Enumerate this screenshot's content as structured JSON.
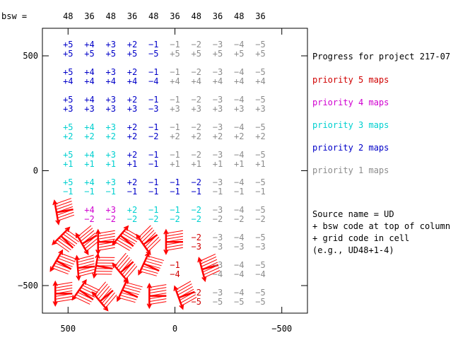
{
  "chart_data": {
    "type": "table",
    "top_label": "bsw =",
    "columns": [
      {
        "bsw": "48",
        "x": 500
      },
      {
        "bsw": "36",
        "x": 400
      },
      {
        "bsw": "48",
        "x": 300
      },
      {
        "bsw": "36",
        "x": 200
      },
      {
        "bsw": "48",
        "x": 100
      },
      {
        "bsw": "36",
        "x": 0
      },
      {
        "bsw": "48",
        "x": -100
      },
      {
        "bsw": "36",
        "x": -200
      },
      {
        "bsw": "48",
        "x": -300
      },
      {
        "bsw": "36",
        "x": -400
      }
    ],
    "rows": [
      {
        "y": 550,
        "upper": [
          "+5",
          "+4",
          "+3",
          "+2",
          "−1",
          "−1",
          "−2",
          "−3",
          "−4",
          "−5"
        ],
        "lower": [
          "+5",
          "+5",
          "+5",
          "+5",
          "−5",
          "+5",
          "+5",
          "+5",
          "+5",
          "+5"
        ]
      },
      {
        "y": 430,
        "upper": [
          "+5",
          "+4",
          "+3",
          "+2",
          "−1",
          "−1",
          "−2",
          "−3",
          "−4",
          "−5"
        ],
        "lower": [
          "+4",
          "+4",
          "+4",
          "+4",
          "−4",
          "+4",
          "+4",
          "+4",
          "+4",
          "+4"
        ]
      },
      {
        "y": 310,
        "upper": [
          "+5",
          "+4",
          "+3",
          "+2",
          "−1",
          "−1",
          "−2",
          "−3",
          "−4",
          "−5"
        ],
        "lower": [
          "+3",
          "+3",
          "+3",
          "+3",
          "−3",
          "+3",
          "+3",
          "+3",
          "+3",
          "+3"
        ]
      },
      {
        "y": 190,
        "upper": [
          "+5",
          "+4",
          "+3",
          "+2",
          "−1",
          "−1",
          "−2",
          "−3",
          "−4",
          "−5"
        ],
        "lower": [
          "+2",
          "+2",
          "+2",
          "+2",
          "−2",
          "+2",
          "+2",
          "+2",
          "+2",
          "+2"
        ]
      },
      {
        "y": 70,
        "upper": [
          "+5",
          "+4",
          "+3",
          "+2",
          "−1",
          "−1",
          "−2",
          "−3",
          "−4",
          "−5"
        ],
        "lower": [
          "+1",
          "+1",
          "+1",
          "+1",
          "−1",
          "+1",
          "+1",
          "+1",
          "+1",
          "+1"
        ]
      },
      {
        "y": -50,
        "upper": [
          "+5",
          "+4",
          "+3",
          "+2",
          "−1",
          "−1",
          "−2",
          "−3",
          "−4",
          "−5"
        ],
        "lower": [
          "−1",
          "−1",
          "−1",
          "−1",
          "−1",
          "−1",
          "−1",
          "−1",
          "−1",
          "−1"
        ]
      },
      {
        "y": -170,
        "upper": [
          "",
          "+4",
          "+3",
          "+2",
          "−1",
          "−1",
          "−2",
          "−3",
          "−4",
          "−5"
        ],
        "lower": [
          "",
          "−2",
          "−2",
          "−2",
          "−2",
          "−2",
          "−2",
          "−2",
          "−2",
          "−2"
        ]
      },
      {
        "y": -290,
        "upper": [
          "",
          "",
          "",
          "",
          "",
          "",
          "−2",
          "−3",
          "−4",
          "−5"
        ],
        "lower": [
          "",
          "",
          "",
          "",
          "",
          "",
          "−3",
          "−3",
          "−3",
          "−3"
        ]
      },
      {
        "y": -410,
        "upper": [
          "",
          "",
          "",
          "",
          "",
          "−1",
          "",
          "−3",
          "−4",
          "−5"
        ],
        "lower": [
          "",
          "",
          "",
          "",
          "",
          "−4",
          "",
          "−4",
          "−4",
          "−4"
        ]
      },
      {
        "y": -530,
        "upper": [
          "",
          "",
          "",
          "",
          "",
          "",
          "−2",
          "−3",
          "−4",
          "−5"
        ],
        "lower": [
          "",
          "",
          "",
          "",
          "",
          "",
          "−5",
          "−5",
          "−5",
          "−5"
        ]
      }
    ],
    "cell_colors": [
      [
        "#0000c8",
        "#0000c8",
        "#0000c8",
        "#0000c8",
        "#0000c8",
        "#8c8c8c",
        "#8c8c8c",
        "#8c8c8c",
        "#8c8c8c",
        "#8c8c8c"
      ],
      [
        "#0000c8",
        "#0000c8",
        "#0000c8",
        "#0000c8",
        "#0000c8",
        "#8c8c8c",
        "#8c8c8c",
        "#8c8c8c",
        "#8c8c8c",
        "#8c8c8c"
      ],
      [
        "#0000c8",
        "#0000c8",
        "#0000c8",
        "#0000c8",
        "#0000c8",
        "#8c8c8c",
        "#8c8c8c",
        "#8c8c8c",
        "#8c8c8c",
        "#8c8c8c"
      ],
      [
        "#00d0d0",
        "#00d0d0",
        "#00d0d0",
        "#0000c8",
        "#0000c8",
        "#8c8c8c",
        "#8c8c8c",
        "#8c8c8c",
        "#8c8c8c",
        "#8c8c8c"
      ],
      [
        "#00d0d0",
        "#00d0d0",
        "#00d0d0",
        "#0000c8",
        "#0000c8",
        "#8c8c8c",
        "#8c8c8c",
        "#8c8c8c",
        "#8c8c8c",
        "#8c8c8c"
      ],
      [
        "#00d0d0",
        "#00d0d0",
        "#00d0d0",
        "#0000c8",
        "#0000c8",
        "#0000c8",
        "#0000c8",
        "#8c8c8c",
        "#8c8c8c",
        "#8c8c8c"
      ],
      [
        "#d000d0",
        "#d000d0",
        "#d000d0",
        "#00d0d0",
        "#00d0d0",
        "#00d0d0",
        "#00d0d0",
        "#8c8c8c",
        "#8c8c8c",
        "#8c8c8c"
      ],
      [
        "#d00000",
        "#d00000",
        "#d00000",
        "#d00000",
        "#d00000",
        "#d00000",
        "#d00000",
        "#8c8c8c",
        "#8c8c8c",
        "#8c8c8c"
      ],
      [
        "#d00000",
        "#d00000",
        "#d00000",
        "#d00000",
        "#d00000",
        "#d00000",
        "#d00000",
        "#8c8c8c",
        "#8c8c8c",
        "#8c8c8c"
      ],
      [
        "#d00000",
        "#d00000",
        "#d00000",
        "#d00000",
        "#d00000",
        "#d00000",
        "#d00000",
        "#8c8c8c",
        "#8c8c8c",
        "#8c8c8c"
      ]
    ],
    "legend": {
      "title": "Progress for project 217-07",
      "entries": [
        {
          "label": "priority 5 maps",
          "color": "#d00000"
        },
        {
          "label": "priority 4 maps",
          "color": "#d000d0"
        },
        {
          "label": "priority 3 maps",
          "color": "#00d0d0"
        },
        {
          "label": "priority 2 maps",
          "color": "#0000c8"
        },
        {
          "label": "priority 1 maps",
          "color": "#8c8c8c"
        }
      ],
      "placement": "right"
    },
    "note": [
      "Source name = UD",
      "+ bsw code at top of column",
      "+ grid code in cell",
      "(e.g., UD48+1-4)"
    ],
    "x_ticks": [
      {
        "value": 500,
        "label": "500"
      },
      {
        "value": 0,
        "label": "0"
      },
      {
        "value": -500,
        "label": "−500"
      }
    ],
    "y_ticks": [
      {
        "value": 500,
        "label": "500"
      },
      {
        "value": 0,
        "label": "0"
      },
      {
        "value": -500,
        "label": "−500"
      }
    ],
    "xlim": [
      620,
      -620
    ],
    "ylim": [
      -620,
      620
    ],
    "grid": false,
    "glyph_color": "#ff0000",
    "glyphs": [
      {
        "x": 515,
        "y": -175,
        "angle": -10
      },
      {
        "x": 505,
        "y": -310,
        "angle": 45
      },
      {
        "x": 400,
        "y": -300,
        "angle": -30
      },
      {
        "x": 320,
        "y": -310,
        "angle": 0
      },
      {
        "x": 225,
        "y": -305,
        "angle": 40
      },
      {
        "x": 115,
        "y": -300,
        "angle": -35
      },
      {
        "x": 2,
        "y": -310,
        "angle": 0
      },
      {
        "x": 520,
        "y": -410,
        "angle": 30
      },
      {
        "x": 415,
        "y": -420,
        "angle": -5
      },
      {
        "x": 330,
        "y": -420,
        "angle": 10
      },
      {
        "x": 225,
        "y": -420,
        "angle": -40
      },
      {
        "x": 110,
        "y": -420,
        "angle": 25
      },
      {
        "x": -165,
        "y": -420,
        "angle": -15
      },
      {
        "x": 520,
        "y": -535,
        "angle": 0
      },
      {
        "x": 415,
        "y": -540,
        "angle": 35
      },
      {
        "x": 320,
        "y": -545,
        "angle": -40
      },
      {
        "x": 210,
        "y": -535,
        "angle": 25
      },
      {
        "x": 80,
        "y": -545,
        "angle": 0
      },
      {
        "x": -55,
        "y": -540,
        "angle": -20
      }
    ]
  }
}
